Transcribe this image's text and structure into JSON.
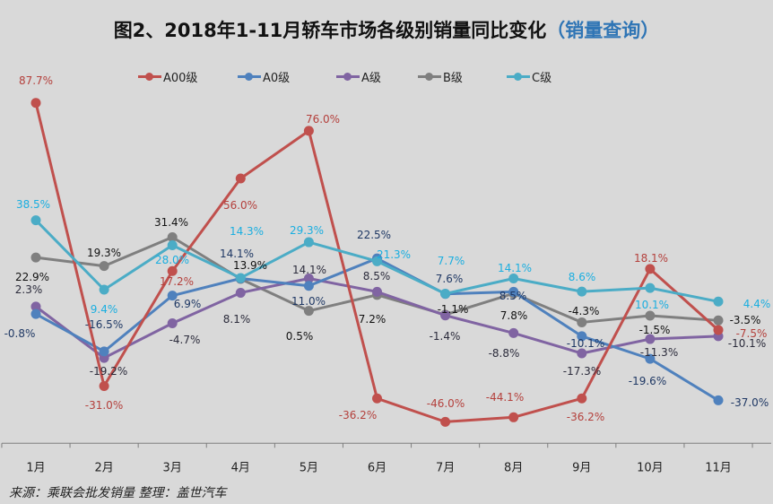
{
  "title": {
    "main": "图2、2018年1-11月轿车市场各级别销量同比变化",
    "link": "（销量查询）"
  },
  "source": "来源：乘联会批发销量 整理：盖世汽车",
  "colors": {
    "background": "#d9d9d9",
    "title_link": "#2f75b5"
  },
  "chart_data": {
    "type": "line",
    "title": "图2、2018年1-11月轿车市场各级别销量同比变化",
    "categories": [
      "1月",
      "2月",
      "3月",
      "4月",
      "5月",
      "6月",
      "7月",
      "8月",
      "9月",
      "10月",
      "11月"
    ],
    "ylim": [
      -55,
      100
    ],
    "grid": false,
    "y_axis_labels": false,
    "legend_placement": "top",
    "series": [
      {
        "name": "A00级",
        "color": "#c0504d",
        "label_color": "#b4403c",
        "values": [
          87.7,
          -31.0,
          17.2,
          56.0,
          76.0,
          -36.2,
          -46.0,
          -44.1,
          -36.2,
          18.1,
          -7.5
        ],
        "labels": [
          "87.7%",
          "-31.0%",
          "17.2%",
          "56.0%",
          "76.0%",
          "-36.2%",
          "-46.0%",
          "-44.1%",
          "-36.2%",
          "18.1%",
          "-7.5%"
        ]
      },
      {
        "name": "A0级",
        "color": "#4f81bd",
        "label_color": "#1f3864",
        "values": [
          -0.8,
          -16.5,
          6.9,
          14.1,
          11.0,
          22.5,
          7.6,
          8.5,
          -10.1,
          -19.6,
          -37.0
        ],
        "labels": [
          "-0.8%",
          "-16.5%",
          "6.9%",
          "14.1%",
          "11.0%",
          "22.5%",
          "7.6%",
          "8.5%",
          "-10.1%",
          "-19.6%",
          "-37.0%"
        ]
      },
      {
        "name": "A级",
        "color": "#8064a2",
        "label_color": "#2b2b3b",
        "values": [
          2.3,
          -19.2,
          -4.7,
          8.1,
          14.1,
          8.5,
          -1.4,
          -8.8,
          -17.3,
          -11.3,
          -10.1
        ],
        "labels": [
          "2.3%",
          "-19.2%",
          "-4.7%",
          "8.1%",
          "14.1%",
          "8.5%",
          "-1.4%",
          "-8.8%",
          "-17.3%",
          "-11.3%",
          "-10.1%"
        ]
      },
      {
        "name": "B级",
        "color": "#7f7f7f",
        "label_color": "#111111",
        "values": [
          22.9,
          19.3,
          31.4,
          13.9,
          0.5,
          7.2,
          -1.1,
          7.8,
          -4.3,
          -1.5,
          -3.5
        ],
        "labels": [
          "22.9%",
          "19.3%",
          "31.4%",
          "13.9%",
          "0.5%",
          "7.2%",
          "-1.1%",
          "7.8%",
          "-4.3%",
          "-1.5%",
          "-3.5%"
        ]
      },
      {
        "name": "C级",
        "color": "#4bacc6",
        "label_color": "#1aaee0",
        "values": [
          38.5,
          9.4,
          28.0,
          14.3,
          29.3,
          21.3,
          7.7,
          14.1,
          8.6,
          10.1,
          4.4
        ],
        "labels": [
          "38.5%",
          "9.4%",
          "28.0%",
          "14.3%",
          "29.3%",
          "21.3%",
          "7.7%",
          "14.1%",
          "8.6%",
          "10.1%",
          "4.4%"
        ]
      }
    ]
  }
}
